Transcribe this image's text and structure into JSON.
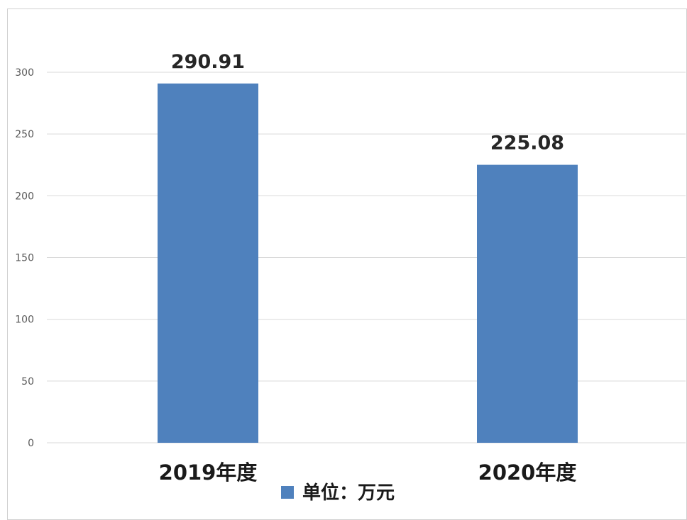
{
  "chart_data": {
    "type": "bar",
    "categories": [
      "2019年度",
      "2020年度"
    ],
    "series": [
      {
        "name": "单位：万元",
        "values": [
          290.91,
          225.08
        ]
      }
    ],
    "value_labels": [
      "290.91",
      "225.08"
    ],
    "yticks": [
      "0",
      "50",
      "100",
      "150",
      "200",
      "250",
      "300"
    ],
    "ylim": [
      0,
      300
    ],
    "grid": true,
    "legend": "bottom",
    "colors": {
      "bar": "#4f81bd",
      "grid": "#d9d9d9",
      "frame": "#d0d0d0"
    }
  }
}
